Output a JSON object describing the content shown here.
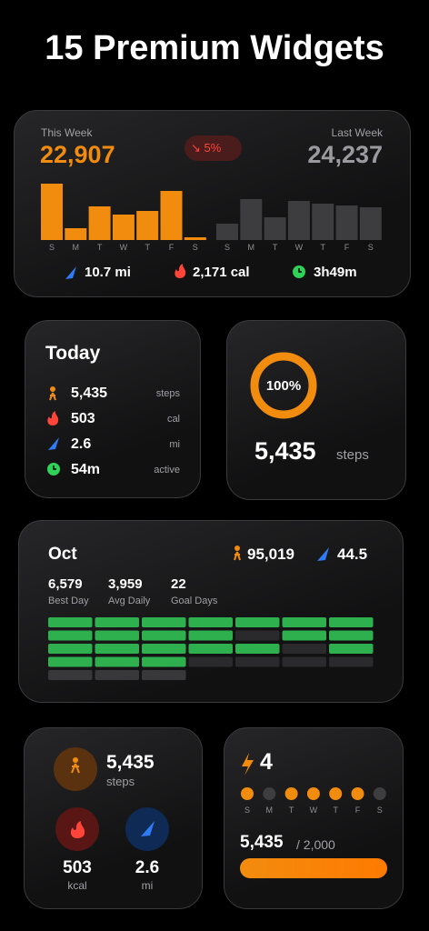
{
  "header": {
    "title": "15 Premium Widgets"
  },
  "weekly": {
    "this_week_label": "This Week",
    "this_week_value": "22,907",
    "change": "↘ 5%",
    "last_week_label": "Last Week",
    "last_week_value": "24,237",
    "days": [
      "S",
      "M",
      "T",
      "W",
      "T",
      "F",
      "S"
    ],
    "this_week_bars": [
      62,
      13,
      37,
      28,
      32,
      54,
      3
    ],
    "last_week_bars": [
      18,
      45,
      25,
      43,
      40,
      38,
      36
    ],
    "this_week_color": "#f28c0f",
    "last_week_color": "#3d3d3f",
    "distance": "10.7 mi",
    "calories": "2,171 cal",
    "time": "3h49m"
  },
  "today": {
    "title": "Today",
    "rows": [
      {
        "value": "5,435",
        "unit": "steps"
      },
      {
        "value": "503",
        "unit": "cal"
      },
      {
        "value": "2.6",
        "unit": "mi"
      },
      {
        "value": "54m",
        "unit": "active"
      }
    ]
  },
  "ring": {
    "percent": {
      "value": 100,
      "label": "100%"
    },
    "steps": "5,435",
    "unit": "steps",
    "color": "#f28c0f"
  },
  "month": {
    "title": "Oct",
    "steps": "95,019",
    "distance": "44.5",
    "stats": [
      {
        "value": "6,579",
        "label": "Best Day"
      },
      {
        "value": "3,959",
        "label": "Avg Daily"
      },
      {
        "value": "22",
        "label": "Goal Days"
      }
    ],
    "cells": [
      [
        "#2fb04f",
        "#2fb04f",
        "#2fb04f",
        "#2fb04f",
        "#2fb04f",
        "#2fb04f",
        "#2fb04f"
      ],
      [
        "#2fb04f",
        "#2fb04f",
        "#2fb04f",
        "#2fb04f",
        "#2a2a2c",
        "#2fb04f",
        "#2fb04f"
      ],
      [
        "#2fb04f",
        "#2fb04f",
        "#2fb04f",
        "#2fb04f",
        "#2fb04f",
        "#2a2a2c",
        "#2fb04f"
      ],
      [
        "#2fb04f",
        "#2fb04f",
        "#2fb04f",
        "#2a2a2c",
        "#2a2a2c",
        "#2a2a2c",
        "#2a2a2c"
      ],
      [
        "#38383a",
        "#38383a",
        "#38383a"
      ]
    ]
  },
  "summary": {
    "steps": "5,435",
    "steps_unit": "steps",
    "kcal": "503",
    "kcal_unit": "kcal",
    "mi": "2.6",
    "mi_unit": "mi"
  },
  "streak": {
    "count": "4",
    "days": [
      "S",
      "M",
      "T",
      "W",
      "T",
      "F",
      "S"
    ],
    "dot_colors": [
      "#f28c0f",
      "#3d3d3f",
      "#f28c0f",
      "#f28c0f",
      "#f28c0f",
      "#f28c0f",
      "#3d3d3f"
    ],
    "value": "5,435",
    "goal": "/ 2,000"
  }
}
